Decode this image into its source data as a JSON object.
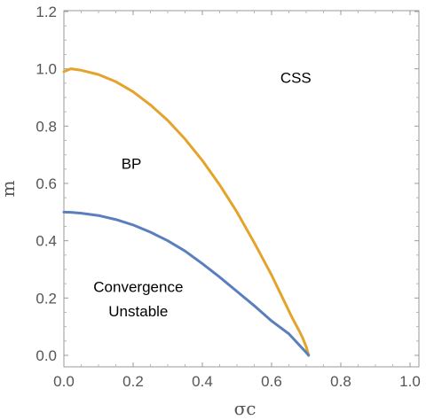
{
  "chart_data": {
    "type": "line",
    "xlabel": "σc",
    "ylabel": "m",
    "xlim": [
      0.0,
      1.0
    ],
    "ylim": [
      0.0,
      1.2
    ],
    "xticks": [
      "0.0",
      "0.2",
      "0.4",
      "0.6",
      "0.8",
      "1.0"
    ],
    "yticks": [
      "0.0",
      "0.2",
      "0.4",
      "0.6",
      "0.8",
      "1.0",
      "1.2"
    ],
    "grid": false,
    "series": [
      {
        "color": "#E4A32B",
        "x": [
          0.0,
          0.02,
          0.05,
          0.1,
          0.15,
          0.2,
          0.25,
          0.3,
          0.35,
          0.4,
          0.45,
          0.5,
          0.55,
          0.6,
          0.62,
          0.64,
          0.66,
          0.68,
          0.69,
          0.7,
          0.707
        ],
        "y": [
          0.99,
          1.0,
          0.995,
          0.98,
          0.955,
          0.92,
          0.874,
          0.82,
          0.755,
          0.68,
          0.595,
          0.5,
          0.393,
          0.28,
          0.23,
          0.18,
          0.13,
          0.085,
          0.06,
          0.03,
          0.0
        ]
      },
      {
        "color": "#5B7FBD",
        "x": [
          0.0,
          0.02,
          0.05,
          0.1,
          0.15,
          0.2,
          0.25,
          0.3,
          0.35,
          0.4,
          0.45,
          0.5,
          0.55,
          0.6,
          0.65,
          0.7,
          0.707
        ],
        "y": [
          0.5,
          0.499,
          0.496,
          0.488,
          0.474,
          0.455,
          0.43,
          0.4,
          0.364,
          0.32,
          0.273,
          0.223,
          0.173,
          0.12,
          0.075,
          0.01,
          0.0
        ]
      }
    ],
    "annotations": [
      {
        "text": "CSS",
        "x": 0.67,
        "y": 0.97
      },
      {
        "text": "BP",
        "x": 0.195,
        "y": 0.67
      },
      {
        "text": "Convergence",
        "x": 0.215,
        "y": 0.24
      },
      {
        "text": "Unstable",
        "x": 0.215,
        "y": 0.155
      }
    ]
  }
}
